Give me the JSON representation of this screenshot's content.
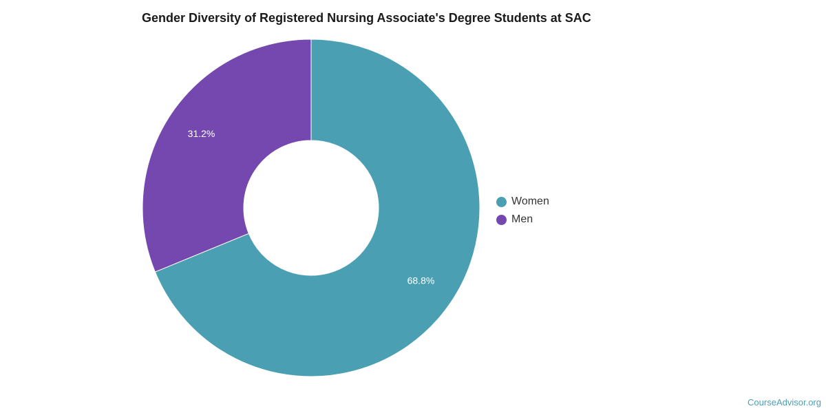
{
  "colors": {
    "women": "#4aa0b2",
    "men": "#7448ae"
  },
  "watermark": "CourseAdvisor.org",
  "chart_data": {
    "type": "pie",
    "donut": true,
    "title": "Gender Diversity of Registered Nursing Associate's Degree Students at SAC",
    "categories": [
      "Women",
      "Men"
    ],
    "values": [
      68.8,
      31.2
    ],
    "labels": [
      "68.8%",
      "31.2%"
    ],
    "legend": {
      "position": "right",
      "items": [
        "Women",
        "Men"
      ]
    }
  }
}
